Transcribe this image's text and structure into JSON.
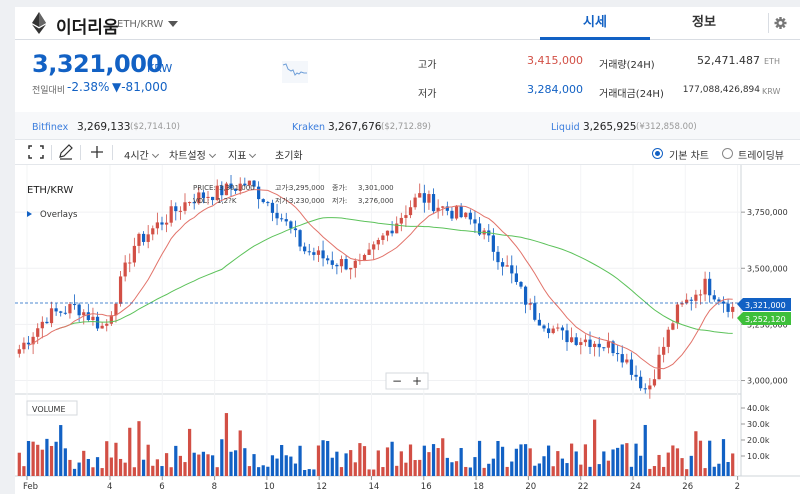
{
  "header": {
    "coin_name": "이더리움",
    "pair": "ETH/KRW",
    "tabs": [
      "시세",
      "정보"
    ]
  },
  "price": {
    "current": "3,321,000",
    "unit": "KRW",
    "change_label": "전일대비",
    "change_pct": "-2.38%",
    "change_abs": "▼-81,000"
  },
  "stats": {
    "high_label": "고가",
    "high": "3,415,000",
    "low_label": "저가",
    "low": "3,284,000",
    "vol_label": "거래량(24H)",
    "vol": "52,471.487",
    "vol_unit": "ETH",
    "amt_label": "거래대금(24H)",
    "amt": "177,088,426,894",
    "amt_unit": "KRW"
  },
  "exchanges": [
    {
      "name": "Bitfinex",
      "price": "3,269,133",
      "usd": "($2,714.10)"
    },
    {
      "name": "Kraken",
      "price": "3,267,676",
      "usd": "($2,712.89)"
    },
    {
      "name": "Liquid",
      "price": "3,265,925",
      "usd": "(¥312,858.00)"
    }
  ],
  "toolbar": {
    "interval": "4시간",
    "chart_settings": "차트설정",
    "indicators": "지표",
    "reset": "초기화",
    "basic_chart": "기본 차트",
    "tradingview": "트레이딩뷰"
  },
  "chart": {
    "pair_label": "ETH/KRW",
    "overlays": "Overlays",
    "volume_label": "VOLUME",
    "legend_price_label": "PRICE:",
    "legend_price": "3,301,000",
    "legend_vol_label": "VOL:",
    "legend_vol": "1,2?K",
    "legend_high_label": "고가:",
    "legend_high": "3,295,000",
    "legend_low_label": "저가:",
    "legend_low": "3,230,000",
    "legend_close_label": "종가:",
    "legend_close": "3,301,000",
    "legend_low2_label": "저가:",
    "legend_low2": "3,276,000",
    "zoom_minus": "−",
    "zoom_plus": "+",
    "current_price_tag": "3,321,000",
    "ma_price_tag": "3,252,120",
    "colors": {
      "up": "#d24f45",
      "down": "#1261c4",
      "ma_short": "#e2736a",
      "ma_long": "#5cc25a",
      "current_tag": "#1261c4",
      "ma_tag": "#3dbf3a"
    }
  },
  "chart_data": {
    "type": "candlestick",
    "y_ticks": [
      "3,750,000",
      "3,500,000",
      "3,250,000",
      "3,000,000"
    ],
    "ylim": [
      2940000,
      3960000
    ],
    "volume_ticks": [
      "40.0k",
      "30.0k",
      "20.0k",
      "10.0k"
    ],
    "x_ticks": [
      "Feb",
      "4",
      "6",
      "8",
      "10",
      "12",
      "14",
      "16",
      "18",
      "20",
      "22",
      "24",
      "26",
      "2"
    ],
    "close_path_anchors": [
      {
        "x": "Feb 1",
        "y": 3140000
      },
      {
        "x": "Feb 2",
        "y": 3290000
      },
      {
        "x": "Feb 3",
        "y": 3330000
      },
      {
        "x": "Feb 4",
        "y": 3230000
      },
      {
        "x": "Feb 5",
        "y": 3600000
      },
      {
        "x": "Feb 6",
        "y": 3710000
      },
      {
        "x": "Feb 7",
        "y": 3810000
      },
      {
        "x": "Feb 8",
        "y": 3840000
      },
      {
        "x": "Feb 10",
        "y": 3880000
      },
      {
        "x": "Feb 11",
        "y": 3760000
      },
      {
        "x": "Feb 12",
        "y": 3580000
      },
      {
        "x": "Feb 13",
        "y": 3530000
      },
      {
        "x": "Feb 14",
        "y": 3510000
      },
      {
        "x": "Feb 15",
        "y": 3680000
      },
      {
        "x": "Feb 16",
        "y": 3820000
      },
      {
        "x": "Feb 17",
        "y": 3760000
      },
      {
        "x": "Feb 18",
        "y": 3700000
      },
      {
        "x": "Feb 19",
        "y": 3520000
      },
      {
        "x": "Feb 20",
        "y": 3300000
      },
      {
        "x": "Feb 21",
        "y": 3200000
      },
      {
        "x": "Feb 22",
        "y": 3180000
      },
      {
        "x": "Feb 23",
        "y": 3140000
      },
      {
        "x": "Feb 24",
        "y": 2950000
      },
      {
        "x": "Feb 25",
        "y": 3300000
      },
      {
        "x": "Feb 26",
        "y": 3430000
      },
      {
        "x": "Feb 27",
        "y": 3321000
      }
    ]
  }
}
